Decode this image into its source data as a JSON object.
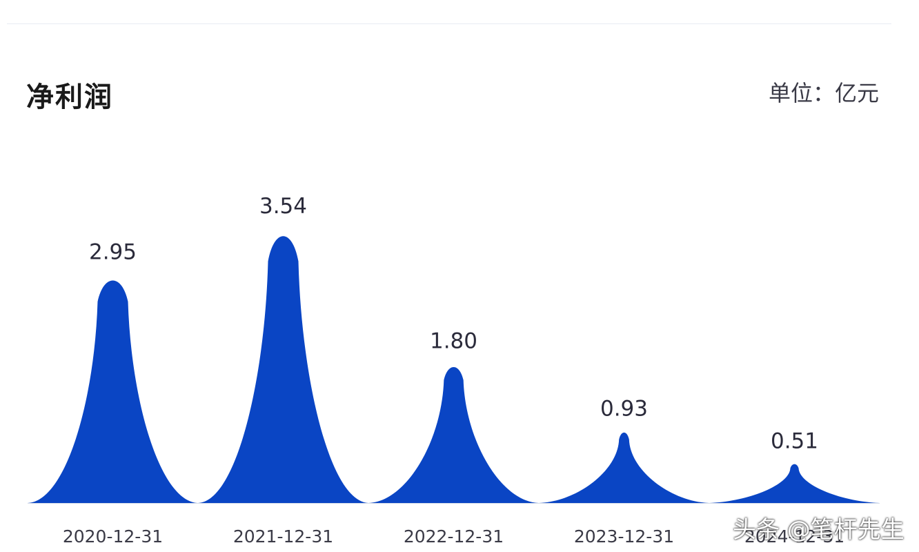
{
  "chart_data": {
    "type": "area",
    "title": "净利润",
    "unit_label": "单位：亿元",
    "categories": [
      "2020-12-31",
      "2021-12-31",
      "2022-12-31",
      "2023-12-31",
      "2024-12-31"
    ],
    "values": [
      2.95,
      3.54,
      1.8,
      0.93,
      0.51
    ],
    "value_labels": [
      "2.95",
      "3.54",
      "1.80",
      "0.93",
      "0.51"
    ],
    "ylim": [
      0,
      3.54
    ],
    "grid": false,
    "legend": "none",
    "colors": {
      "fill": "#0a45c4",
      "label_text": "#2a2a3a",
      "axis_line": "#d6dde8",
      "tick_text": "#3a3a46"
    }
  },
  "watermark": "头条 @笔杆先生"
}
